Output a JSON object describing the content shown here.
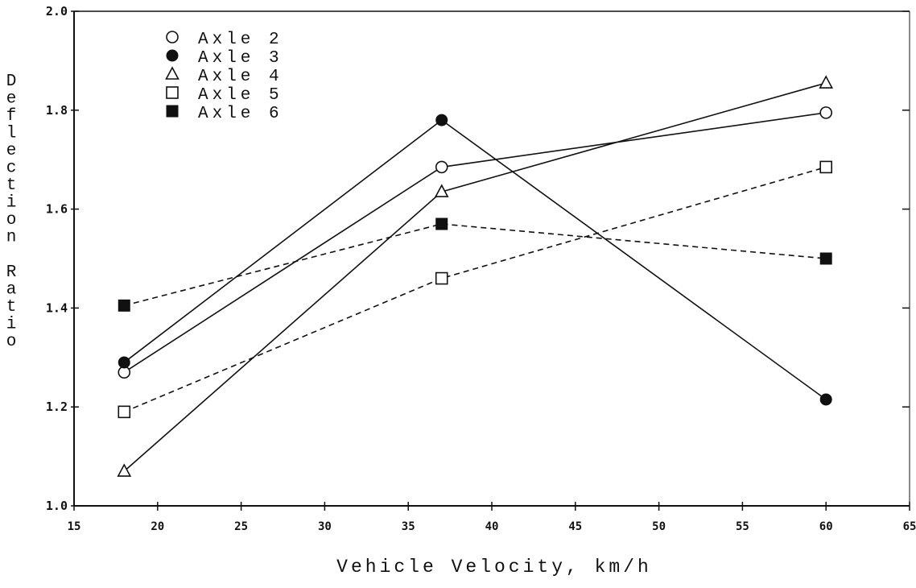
{
  "chart_data": {
    "type": "line",
    "xlabel": "Vehicle Velocity, km/h",
    "ylabel": "Deflection Ratio",
    "xlim": [
      15,
      65
    ],
    "ylim": [
      1.0,
      2.0
    ],
    "x_ticks": [
      "15",
      "20",
      "25",
      "30",
      "35",
      "40",
      "45",
      "50",
      "55",
      "60",
      "65"
    ],
    "y_ticks": [
      "1.0",
      "1.2",
      "1.4",
      "1.6",
      "1.8",
      "2.0"
    ],
    "legend_position": "top-left",
    "grid": false,
    "x": [
      18,
      37,
      60
    ],
    "series": [
      {
        "name": "Axle 2",
        "values": [
          1.27,
          1.685,
          1.795
        ],
        "marker": "circle-open",
        "line": "solid"
      },
      {
        "name": "Axle 3",
        "values": [
          1.29,
          1.78,
          1.215
        ],
        "marker": "circle-filled",
        "line": "solid"
      },
      {
        "name": "Axle 4",
        "values": [
          1.07,
          1.635,
          1.855
        ],
        "marker": "triangle-open",
        "line": "solid"
      },
      {
        "name": "Axle 5",
        "values": [
          1.19,
          1.46,
          1.685
        ],
        "marker": "square-open",
        "line": "dashed"
      },
      {
        "name": "Axle 6",
        "values": [
          1.405,
          1.57,
          1.5
        ],
        "marker": "square-filled",
        "line": "dashed"
      }
    ]
  }
}
